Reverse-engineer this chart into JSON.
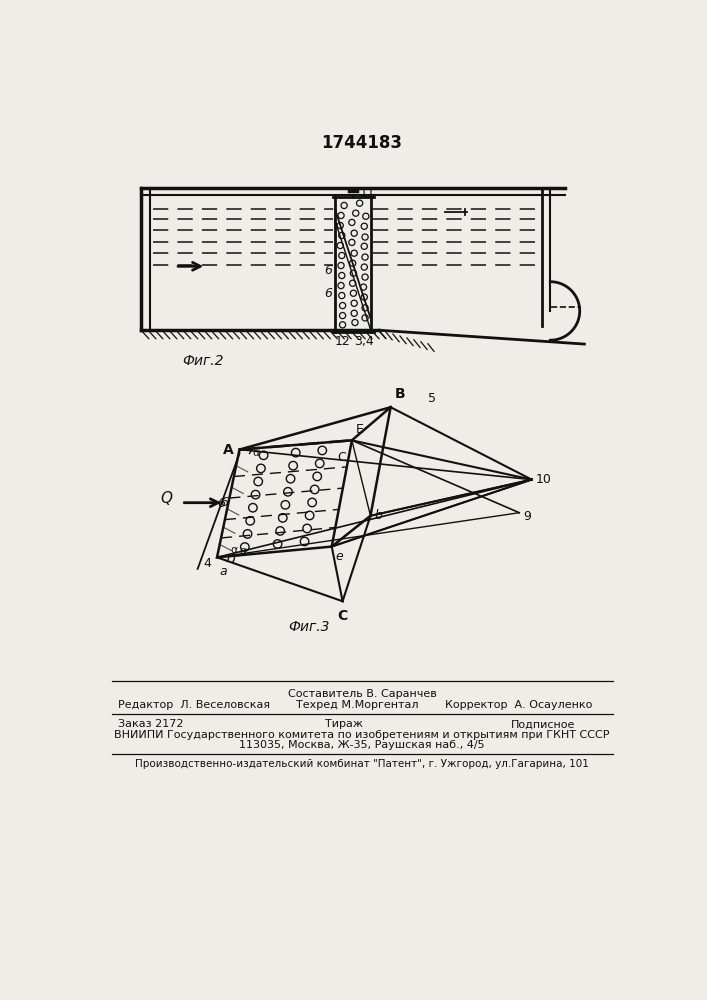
{
  "patent_number": "1744183",
  "fig2_caption": "Фиг.2",
  "fig3_caption": "Фиг.3",
  "footer_line1_left": "Редактор  Л. Веселовская",
  "footer_line1_center_top": "Составитель В. Саранчев",
  "footer_line1_center": "Техред М.Моргентал",
  "footer_line1_right": "Корректор  А. Осауленко",
  "footer_line2_left": "Заказ 2172",
  "footer_line2_center": "Тираж",
  "footer_line2_right": "Подписное",
  "footer_line3": "ВНИИПИ Государственного комитета по изобретениям и открытиям при ГКНТ СССР",
  "footer_line4": "113035, Москва, Ж-35, Раушская наб., 4/5",
  "footer_line5": "Производственно-издательский комбинат \"Патент\", г. Ужгород, ул.Гагарина, 101",
  "bg_color": "#f0ede8"
}
